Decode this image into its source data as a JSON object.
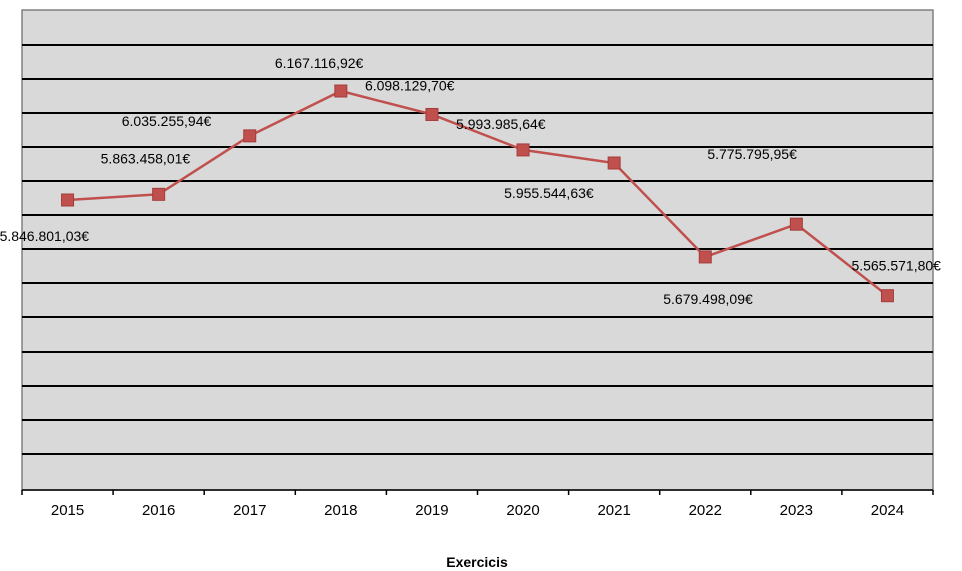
{
  "chart_data": {
    "type": "line",
    "title": "",
    "xlabel": "Exercicis",
    "ylabel": "",
    "categories": [
      "2015",
      "2016",
      "2017",
      "2018",
      "2019",
      "2020",
      "2021",
      "2022",
      "2023",
      "2024"
    ],
    "series": [
      {
        "values": [
          5846801.03,
          5863458.01,
          6035255.94,
          6167116.92,
          6098129.7,
          5993985.64,
          5955544.63,
          5679498.09,
          5775795.95,
          5565571.8
        ],
        "labels": [
          "5.846.801,03€",
          "5.863.458,01€",
          "6.035.255,94€",
          "6.167.116,92€",
          "6.098.129,70€",
          "5.993.985,64€",
          "5.955.544,63€",
          "5.679.498,09€",
          "5.775.795,95€",
          "5.565.571,80€"
        ],
        "points_y": [
          5846801.03,
          5863458.01,
          6035255.94,
          6167116.92,
          6098129.7,
          5993985.64,
          5955544.63,
          5679498.09,
          5775795.95,
          5565571.8
        ]
      }
    ],
    "grid": true,
    "legend": "none",
    "colors": {
      "series_line": "#c0504d",
      "plot_background": "#d9d9d9",
      "gridline": "#000000"
    }
  }
}
